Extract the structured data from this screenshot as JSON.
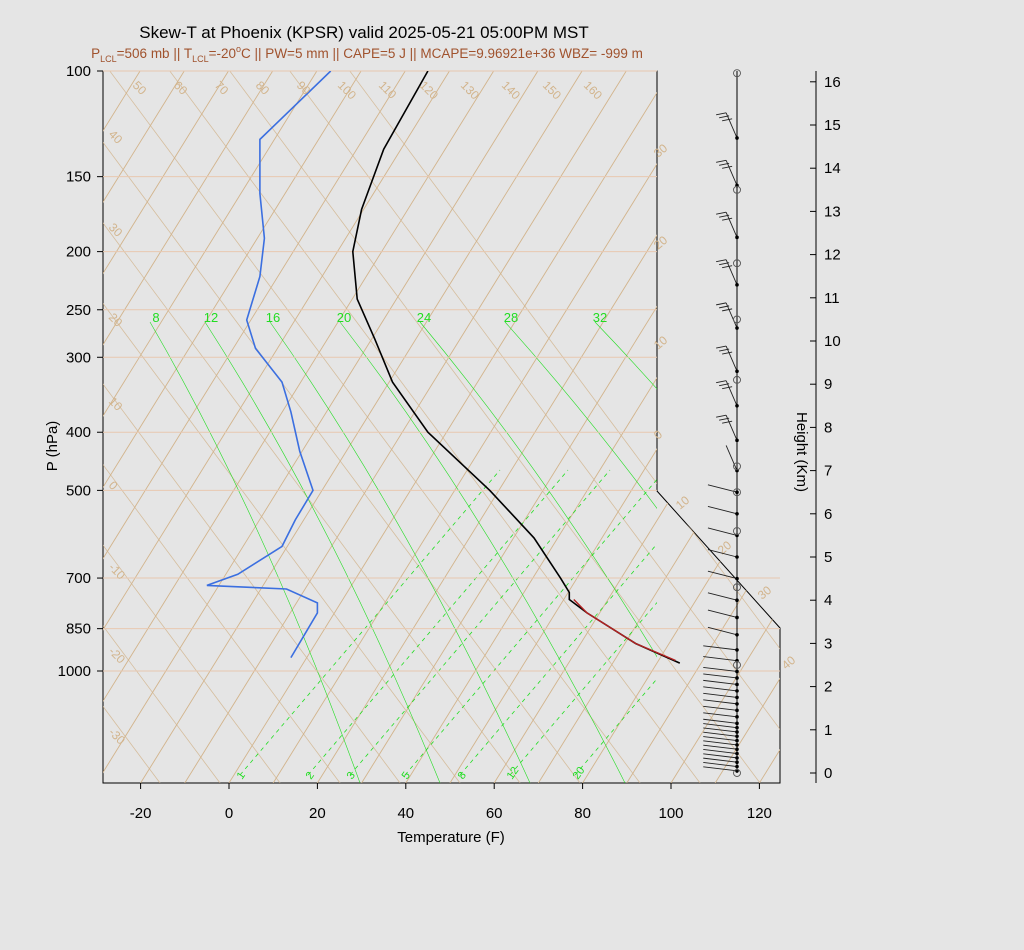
{
  "title": "Skew-T at Phoenix (KPSR) valid 2025-05-21 05:00PM MST",
  "subtitle": {
    "p_lcl_pre": "P",
    "p_lcl_sub": "LCL",
    "p_lcl_val": "=506 mb",
    "sep1": " || ",
    "t_lcl_pre": "T",
    "t_lcl_sub": "LCL",
    "t_lcl_val": "=-20",
    "t_lcl_sup": "o",
    "t_lcl_unit": "C",
    "rest": " || PW=5 mm || CAPE=5 J || MCAPE=9.96921e+36 WBZ= -999 m"
  },
  "colors": {
    "temperature": "#000000",
    "dewpoint": "#3b6fe0",
    "parcel": "#b22222",
    "isotherm": "#d2b48c",
    "mixing_ratio": "#22dd22",
    "grid": "#e8c8b0"
  },
  "chart_data": {
    "type": "skew-t",
    "xlabel": "Temperature (F)",
    "ylabel": "P (hPa)",
    "y2label": "Height (Km)",
    "x_ticks": [
      -20,
      0,
      20,
      40,
      60,
      80,
      100,
      120
    ],
    "p_ticks": [
      100,
      150,
      200,
      250,
      300,
      400,
      500,
      700,
      850,
      1000
    ],
    "height_ticks": [
      0,
      1,
      2,
      3,
      4,
      5,
      6,
      7,
      8,
      9,
      10,
      11,
      12,
      13,
      14,
      15,
      16
    ],
    "isotherm_labels_top": [
      50,
      60,
      70,
      80,
      90,
      100,
      110,
      120,
      130,
      140,
      150,
      160
    ],
    "isotherm_labels_left": [
      40,
      30,
      20,
      10,
      0,
      -10,
      -20,
      -30
    ],
    "isotherm_labels_right": [
      30,
      20,
      10,
      0,
      10,
      20,
      30,
      40
    ],
    "mixing_ratio_labels_upper": [
      8,
      12,
      16,
      20,
      24,
      28,
      32
    ],
    "mixing_ratio_labels_lower": [
      1,
      2,
      3,
      5,
      8,
      12,
      20
    ],
    "temperature_profile": [
      {
        "p": 970,
        "t": 102
      },
      {
        "p": 900,
        "t": 92
      },
      {
        "p": 800,
        "t": 81
      },
      {
        "p": 760,
        "t": 77
      },
      {
        "p": 740,
        "t": 77
      },
      {
        "p": 700,
        "t": 75
      },
      {
        "p": 600,
        "t": 69
      },
      {
        "p": 500,
        "t": 59
      },
      {
        "p": 400,
        "t": 45
      },
      {
        "p": 330,
        "t": 37
      },
      {
        "p": 280,
        "t": 33
      },
      {
        "p": 240,
        "t": 29
      },
      {
        "p": 200,
        "t": 28
      },
      {
        "p": 170,
        "t": 30
      },
      {
        "p": 135,
        "t": 35
      },
      {
        "p": 100,
        "t": 45
      }
    ],
    "dewpoint_profile": [
      {
        "p": 950,
        "t": 14
      },
      {
        "p": 800,
        "t": 20
      },
      {
        "p": 770,
        "t": 20
      },
      {
        "p": 730,
        "t": 13
      },
      {
        "p": 720,
        "t": -5
      },
      {
        "p": 690,
        "t": 2
      },
      {
        "p": 620,
        "t": 12
      },
      {
        "p": 560,
        "t": 15
      },
      {
        "p": 500,
        "t": 19
      },
      {
        "p": 430,
        "t": 16
      },
      {
        "p": 370,
        "t": 14
      },
      {
        "p": 330,
        "t": 12
      },
      {
        "p": 290,
        "t": 6
      },
      {
        "p": 260,
        "t": 4
      },
      {
        "p": 220,
        "t": 7
      },
      {
        "p": 190,
        "t": 8
      },
      {
        "p": 160,
        "t": 7
      },
      {
        "p": 130,
        "t": 7
      },
      {
        "p": 100,
        "t": 23
      }
    ],
    "parcel_profile": [
      {
        "p": 960,
        "t": 101
      },
      {
        "p": 900,
        "t": 92
      },
      {
        "p": 800,
        "t": 81
      },
      {
        "p": 760,
        "t": 78
      }
    ],
    "wind_profile_km": [
      0.05,
      0.15,
      0.25,
      0.35,
      0.45,
      0.55,
      0.65,
      0.75,
      0.85,
      0.95,
      1.05,
      1.15,
      1.3,
      1.45,
      1.6,
      1.75,
      1.9,
      2.05,
      2.2,
      2.35,
      2.6,
      2.85,
      3.2,
      3.6,
      4.0,
      4.5,
      5.0,
      5.5,
      6.0,
      6.5,
      7.0,
      7.7,
      8.5,
      9.3,
      10.3,
      11.3,
      12.4,
      13.6,
      14.7
    ]
  }
}
